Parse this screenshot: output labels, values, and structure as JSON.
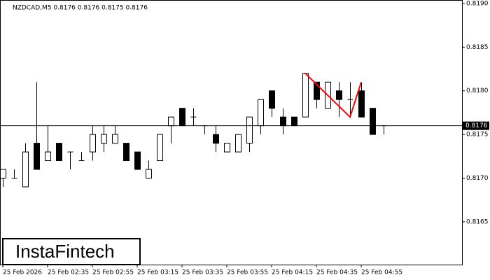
{
  "chart_data": {
    "type": "candlestick",
    "title": "NZDCAD,M5  0.8176 0.8176 0.8175 0.8176",
    "logo": "InstaFintech",
    "categories": [
      "25 Feb 2026",
      null,
      null,
      null,
      "25 Feb 02:35",
      null,
      null,
      null,
      "25 Feb 02:55",
      null,
      null,
      null,
      "25 Feb 03:15",
      null,
      null,
      null,
      "25 Feb 03:35",
      null,
      null,
      null,
      "25 Feb 03:55",
      null,
      null,
      null,
      "25 Feb 04:15",
      null,
      null,
      null,
      "25 Feb 04:35",
      null,
      null,
      null,
      "25 Feb 04:55",
      null,
      null
    ],
    "open": [
      0.817,
      0.817,
      0.8169,
      0.8174,
      0.8172,
      0.8174,
      0.8173,
      0.8172,
      0.8173,
      0.8174,
      0.8174,
      0.8174,
      0.8173,
      0.817,
      0.8172,
      0.8176,
      0.8178,
      0.8177,
      0.8176,
      0.8175,
      0.8173,
      0.8173,
      0.8174,
      0.8176,
      0.818,
      0.8177,
      0.8177,
      0.8177,
      0.8181,
      0.8178,
      0.818,
      0.8179,
      0.818,
      0.8178,
      0.8176
    ],
    "high": [
      0.8171,
      0.8171,
      0.8174,
      0.8181,
      0.8176,
      0.8174,
      0.8173,
      0.8173,
      0.8176,
      0.8176,
      0.8176,
      0.8174,
      0.8173,
      0.8172,
      0.8175,
      0.8177,
      0.8178,
      0.8178,
      0.8176,
      0.8176,
      0.8174,
      0.8175,
      0.8177,
      0.8179,
      0.818,
      0.8178,
      0.8177,
      0.8182,
      0.8181,
      0.8181,
      0.8181,
      0.8181,
      0.8181,
      0.8178,
      0.8176
    ],
    "low": [
      0.8169,
      0.817,
      0.8169,
      0.8171,
      0.8172,
      0.8172,
      0.8171,
      0.8172,
      0.8172,
      0.8173,
      0.8174,
      0.8172,
      0.8171,
      0.817,
      0.8172,
      0.8174,
      0.8176,
      0.8176,
      0.8175,
      0.8173,
      0.8173,
      0.8173,
      0.8173,
      0.8175,
      0.8177,
      0.8175,
      0.8176,
      0.8177,
      0.8178,
      0.8178,
      0.8177,
      0.8177,
      0.8177,
      0.8175,
      0.8175
    ],
    "close": [
      0.8171,
      0.817,
      0.8173,
      0.8171,
      0.8173,
      0.8172,
      0.8173,
      0.8172,
      0.8175,
      0.8175,
      0.8175,
      0.8172,
      0.8171,
      0.8171,
      0.8175,
      0.8177,
      0.8176,
      0.8177,
      0.8176,
      0.8174,
      0.8174,
      0.8175,
      0.8177,
      0.8179,
      0.8178,
      0.8176,
      0.8176,
      0.8182,
      0.8179,
      0.8181,
      0.8179,
      0.8179,
      0.8177,
      0.8175,
      0.8176
    ],
    "up_color": "#ffffff",
    "down_color": "#000000",
    "ylim": [
      0.81601,
      0.81904
    ],
    "yticks": [
      0.8165,
      {
        "value": 0.817,
        "label": "0.8170"
      },
      0.8175,
      {
        "value": 0.818,
        "label": "0.8180"
      },
      0.8185,
      {
        "value": 0.819,
        "label": "0.8190"
      }
    ],
    "current_price": 0.8176,
    "pattern": {
      "color": "#ff0000",
      "at": [
        27,
        31,
        32
      ],
      "values": [
        0.8182,
        0.8177,
        0.8181
      ]
    }
  }
}
